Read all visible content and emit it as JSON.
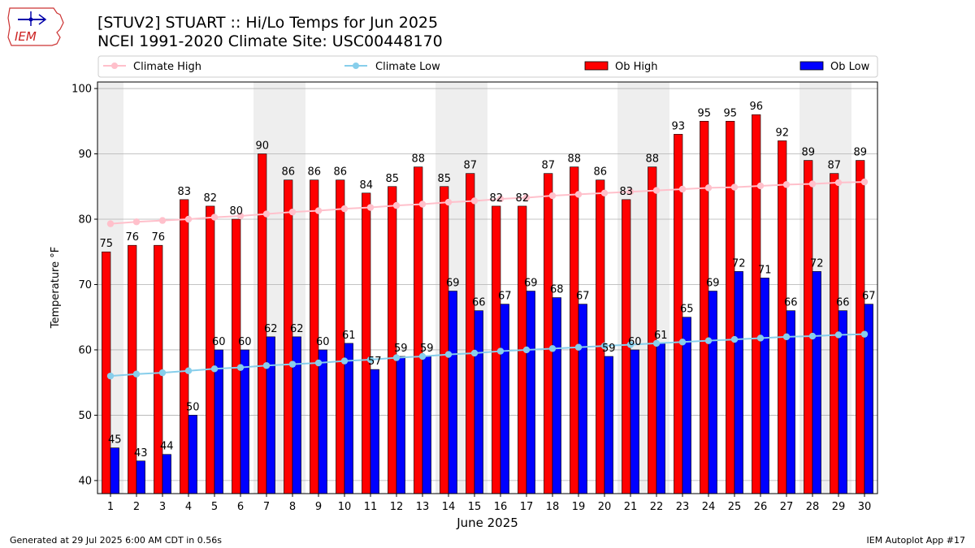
{
  "header": {
    "logo_text": "IEM",
    "title_line1": "[STUV2] STUART :: Hi/Lo Temps for Jun 2025",
    "title_line2": "NCEI 1991-2020 Climate Site: USC00448170"
  },
  "footer": {
    "generated": "Generated at 29 Jul 2025 6:00 AM CDT in 0.56s",
    "app": "IEM Autoplot App #17"
  },
  "colors": {
    "ob_high": "#ff0000",
    "ob_low": "#0000ff",
    "climate_high": "#ffc0cb",
    "climate_low": "#87ceeb",
    "weekend_band": "#eeeeee",
    "grid": "#b0b0b0"
  },
  "chart_data": {
    "type": "bar",
    "xlabel": "June 2025",
    "ylabel": "Temperature °F",
    "ylim": [
      38,
      101
    ],
    "yticks": [
      40,
      50,
      60,
      70,
      80,
      90,
      100
    ],
    "grid": "horizontal",
    "legend_position": "top",
    "categories": [
      "1",
      "2",
      "3",
      "4",
      "5",
      "6",
      "7",
      "8",
      "9",
      "10",
      "11",
      "12",
      "13",
      "14",
      "15",
      "16",
      "17",
      "18",
      "19",
      "20",
      "21",
      "22",
      "23",
      "24",
      "25",
      "26",
      "27",
      "28",
      "29",
      "30"
    ],
    "weekend_days": [
      1,
      7,
      8,
      14,
      15,
      21,
      22,
      28,
      29
    ],
    "series": [
      {
        "name": "Ob High",
        "kind": "bar",
        "values": [
          75,
          76,
          76,
          83,
          82,
          80,
          90,
          86,
          86,
          86,
          84,
          85,
          88,
          85,
          87,
          82,
          82,
          87,
          88,
          86,
          83,
          88,
          93,
          95,
          95,
          96,
          92,
          89,
          87,
          89
        ]
      },
      {
        "name": "Ob Low",
        "kind": "bar",
        "values": [
          45,
          43,
          44,
          50,
          60,
          60,
          62,
          62,
          60,
          61,
          57,
          59,
          59,
          69,
          66,
          67,
          69,
          68,
          67,
          59,
          60,
          61,
          65,
          69,
          72,
          71,
          66,
          72,
          66,
          67
        ]
      },
      {
        "name": "Climate High",
        "kind": "line",
        "values": [
          79.3,
          79.6,
          79.8,
          80.0,
          80.3,
          80.5,
          80.8,
          81.1,
          81.3,
          81.6,
          81.8,
          82.1,
          82.3,
          82.6,
          82.8,
          83.1,
          83.3,
          83.6,
          83.8,
          84.0,
          84.2,
          84.4,
          84.6,
          84.8,
          84.9,
          85.1,
          85.3,
          85.4,
          85.6,
          85.7
        ]
      },
      {
        "name": "Climate Low",
        "kind": "line",
        "values": [
          56.0,
          56.3,
          56.5,
          56.8,
          57.1,
          57.3,
          57.6,
          57.8,
          58.0,
          58.3,
          58.5,
          58.8,
          59.0,
          59.3,
          59.5,
          59.8,
          60.0,
          60.2,
          60.4,
          60.6,
          60.8,
          61.0,
          61.2,
          61.4,
          61.6,
          61.8,
          62.0,
          62.1,
          62.3,
          62.4
        ]
      }
    ]
  }
}
